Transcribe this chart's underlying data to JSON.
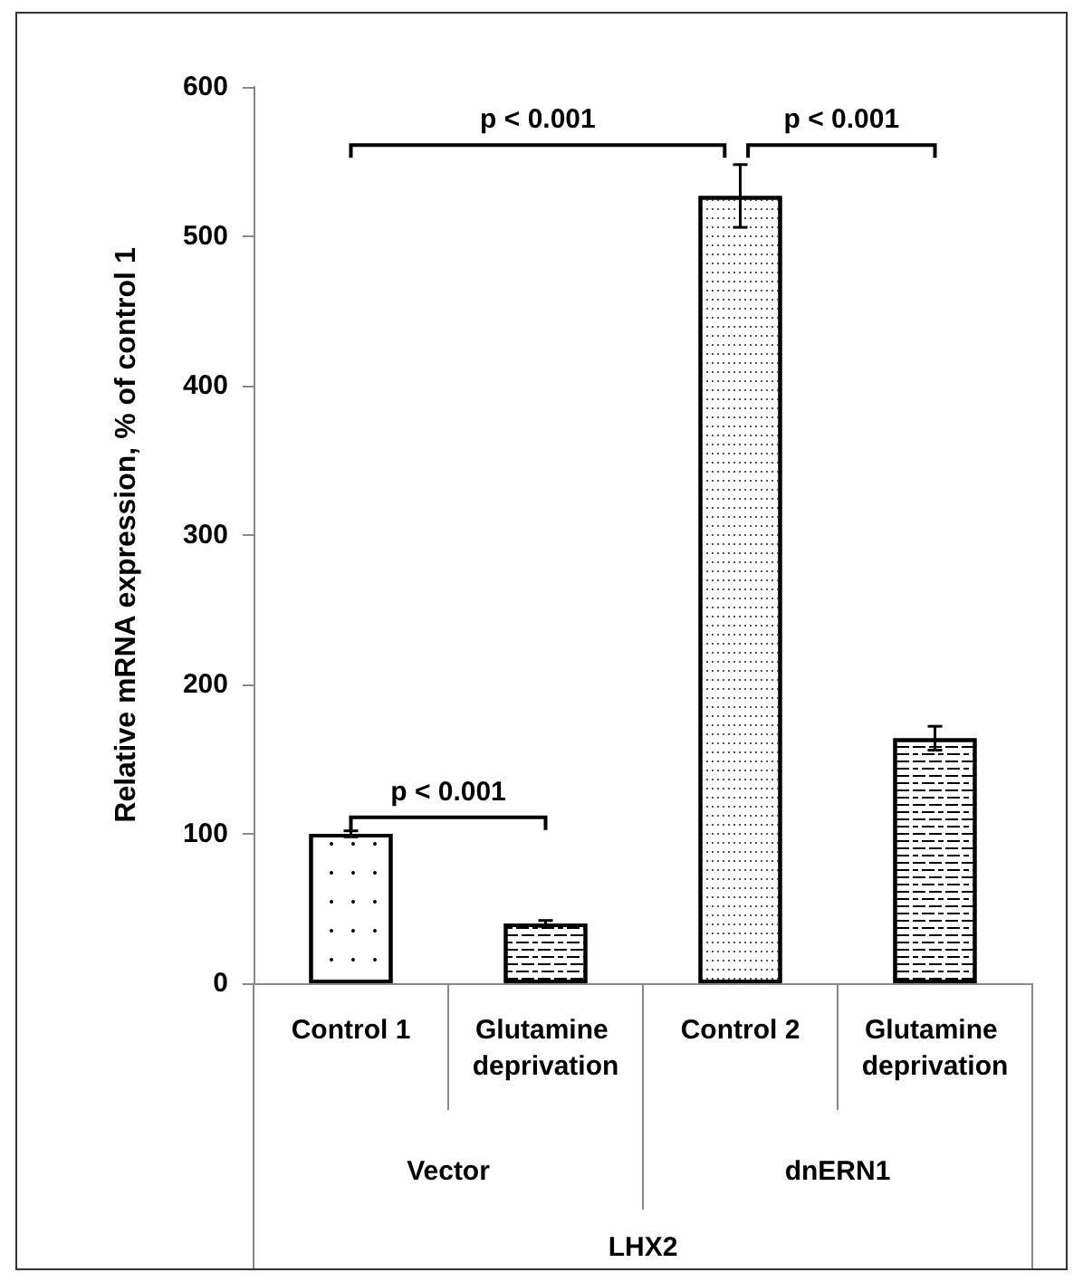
{
  "chart_data": {
    "type": "bar",
    "ylabel": "Relative mRNA expression, % of control 1",
    "categories": [
      "Control 1",
      "Glutamine deprivation",
      "Control 2",
      "Glutamine deprivation"
    ],
    "values": [
      100,
      40,
      527,
      164
    ],
    "errors": [
      2,
      2,
      21,
      8
    ],
    "colors": [
      "#ffffff",
      "#ffffff",
      "#ffffff",
      "#ffffff"
    ],
    "ylim": [
      0,
      600
    ],
    "yticks": [
      0,
      100,
      200,
      300,
      400,
      500,
      600
    ],
    "annotations": [
      "p < 0.001",
      "p < 0.001",
      "p < 0.001",
      "Vector",
      "dnERN1",
      "LHX2"
    ]
  }
}
